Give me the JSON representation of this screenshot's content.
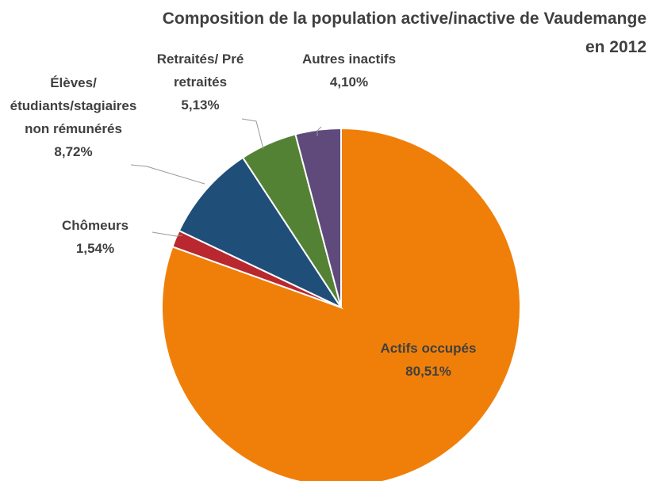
{
  "chart_data": {
    "type": "pie",
    "title": "Composition de la population active/inactive de Vaudemange en 2012",
    "categories": [
      "Actifs occupés",
      "Chômeurs",
      "Élèves/étudiants/stagiaires non rémunérés",
      "Retraités/ Pré retraités",
      "Autres inactifs"
    ],
    "values": [
      80.51,
      1.54,
      8.72,
      5.13,
      4.1
    ],
    "value_labels": [
      "80,51%",
      "1,54%",
      "8,72%",
      "5,13%",
      "4,10%"
    ],
    "colors": [
      "#f07f09",
      "#b8282e",
      "#1f4e79",
      "#548235",
      "#604a7b"
    ]
  }
}
